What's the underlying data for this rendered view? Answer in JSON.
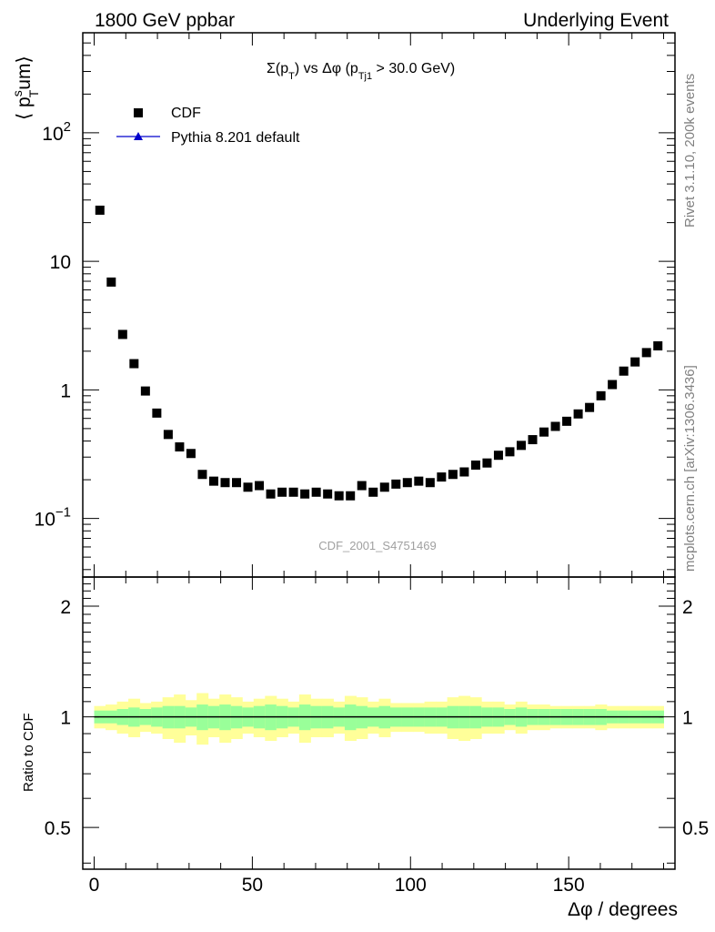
{
  "header": {
    "left": "1800 GeV ppbar",
    "right": "Underlying Event"
  },
  "side_labels": {
    "upper": "Rivet 3.1.10,  200k events",
    "lower": "mcplots.cern.ch [arXiv:1306.3436]"
  },
  "watermark": "CDF_2001_S4751469",
  "colors": {
    "data": "#000000",
    "mc": "#0000cc",
    "band_inner": "#99ff99",
    "band_outer": "#ffff99"
  },
  "chart_data": [
    {
      "type": "scatter",
      "panel": "main",
      "title_parts": {
        "sigma": "Σ(p",
        "sub_T": "T",
        "mid": ") vs Δφ (p",
        "sub_Tj1": "Tj1",
        "tail": " > 30.0 GeV)"
      },
      "ylabel_parts": {
        "open": "⟨ p",
        "sup": "s",
        "sub": "T",
        "close": "um⟩"
      },
      "xlabel": "Δφ / degrees",
      "yscale": "log",
      "ylim": [
        0.035,
        600
      ],
      "xlim": [
        -3.6,
        183.6
      ],
      "yticks": [
        {
          "value": 0.1,
          "base": "10",
          "exp": "−1"
        },
        {
          "value": 1,
          "label": "1"
        },
        {
          "value": 10,
          "label": "10"
        },
        {
          "value": 100,
          "base": "10",
          "exp": "2"
        }
      ],
      "legend": {
        "position": "top-left",
        "entries": [
          {
            "label": "CDF",
            "marker": "square"
          },
          {
            "label": "Pythia 8.201 default",
            "marker": "triangle-line"
          }
        ]
      },
      "series": [
        {
          "name": "CDF",
          "x": [
            1.8,
            5.4,
            9.0,
            12.6,
            16.2,
            19.8,
            23.4,
            27.0,
            30.6,
            34.2,
            37.8,
            41.4,
            45.0,
            48.6,
            52.2,
            55.8,
            59.4,
            63.0,
            66.6,
            70.2,
            73.8,
            77.4,
            81.0,
            84.6,
            88.2,
            91.8,
            95.4,
            99.0,
            102.6,
            106.2,
            109.8,
            113.4,
            117.0,
            120.6,
            124.2,
            127.8,
            131.4,
            135.0,
            138.6,
            142.2,
            145.8,
            149.4,
            153.0,
            156.6,
            160.2,
            163.8,
            167.4,
            171.0,
            174.6,
            178.2
          ],
          "y": [
            25,
            6.9,
            2.7,
            1.6,
            0.98,
            0.66,
            0.45,
            0.36,
            0.32,
            0.22,
            0.195,
            0.19,
            0.19,
            0.175,
            0.18,
            0.155,
            0.16,
            0.16,
            0.155,
            0.16,
            0.155,
            0.15,
            0.15,
            0.18,
            0.16,
            0.175,
            0.185,
            0.19,
            0.195,
            0.19,
            0.21,
            0.22,
            0.23,
            0.26,
            0.27,
            0.31,
            0.33,
            0.37,
            0.41,
            0.47,
            0.52,
            0.57,
            0.65,
            0.73,
            0.9,
            1.1,
            1.4,
            1.65,
            1.95,
            2.2
          ]
        }
      ]
    },
    {
      "type": "area",
      "panel": "ratio",
      "ylabel": "Ratio to CDF",
      "yscale": "log",
      "ylim": [
        0.385,
        2.4
      ],
      "yticks": [
        {
          "value": 0.5,
          "label": "0.5"
        },
        {
          "value": 1,
          "label": "1"
        },
        {
          "value": 2,
          "label": "2"
        }
      ],
      "xticks": [
        {
          "value": 0,
          "label": "0"
        },
        {
          "value": 50,
          "label": "50"
        },
        {
          "value": 100,
          "label": "100"
        },
        {
          "value": 150,
          "label": "150"
        }
      ],
      "bin_width": 3.6,
      "x": [
        1.8,
        5.4,
        9.0,
        12.6,
        16.2,
        19.8,
        23.4,
        27.0,
        30.6,
        34.2,
        37.8,
        41.4,
        45.0,
        48.6,
        52.2,
        55.8,
        59.4,
        63.0,
        66.6,
        70.2,
        73.8,
        77.4,
        81.0,
        84.6,
        88.2,
        91.8,
        95.4,
        99.0,
        102.6,
        106.2,
        109.8,
        113.4,
        117.0,
        120.6,
        124.2,
        127.8,
        131.4,
        135.0,
        138.6,
        142.2,
        145.8,
        149.4,
        153.0,
        156.6,
        160.2,
        163.8,
        167.4,
        171.0,
        174.6,
        178.2
      ],
      "inner_rel": [
        0.04,
        0.04,
        0.05,
        0.06,
        0.05,
        0.06,
        0.07,
        0.07,
        0.06,
        0.08,
        0.07,
        0.08,
        0.07,
        0.06,
        0.07,
        0.08,
        0.07,
        0.06,
        0.08,
        0.07,
        0.07,
        0.06,
        0.08,
        0.07,
        0.06,
        0.07,
        0.06,
        0.06,
        0.06,
        0.06,
        0.06,
        0.07,
        0.07,
        0.07,
        0.06,
        0.06,
        0.05,
        0.06,
        0.05,
        0.05,
        0.05,
        0.05,
        0.05,
        0.05,
        0.05,
        0.04,
        0.04,
        0.04,
        0.04,
        0.04
      ],
      "outer_rel": [
        0.07,
        0.08,
        0.1,
        0.12,
        0.09,
        0.1,
        0.13,
        0.15,
        0.11,
        0.16,
        0.12,
        0.15,
        0.13,
        0.1,
        0.12,
        0.14,
        0.12,
        0.1,
        0.15,
        0.12,
        0.12,
        0.1,
        0.14,
        0.13,
        0.1,
        0.12,
        0.09,
        0.09,
        0.09,
        0.1,
        0.1,
        0.13,
        0.14,
        0.13,
        0.1,
        0.1,
        0.08,
        0.1,
        0.08,
        0.08,
        0.07,
        0.07,
        0.07,
        0.07,
        0.08,
        0.07,
        0.07,
        0.07,
        0.07,
        0.07
      ],
      "reference": 1
    }
  ]
}
